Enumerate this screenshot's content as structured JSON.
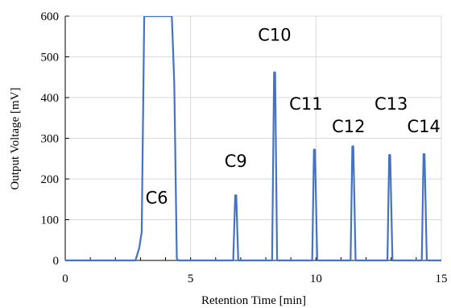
{
  "chart_data": {
    "type": "line",
    "title": "",
    "xlabel": "Retention Time [min]",
    "ylabel": "Output Voltage [mV]",
    "xlim": [
      0,
      15
    ],
    "ylim": [
      0,
      600
    ],
    "grid": true,
    "xticks": [
      0,
      5,
      10,
      15
    ],
    "xtick_labels": [
      "0",
      "5",
      "10",
      "15"
    ],
    "yticks": [
      0,
      100,
      200,
      300,
      400,
      500,
      600
    ],
    "ytick_labels": [
      "0",
      "100",
      "200",
      "300",
      "400",
      "500",
      "600"
    ],
    "series": [
      {
        "color": "#4472C4",
        "x": [
          0,
          2.8,
          2.95,
          3.05,
          3.15,
          3.2,
          4.25,
          4.3,
          4.35,
          4.45,
          4.5,
          6.7,
          6.78,
          6.82,
          6.9,
          8.25,
          8.33,
          8.37,
          8.45,
          9.85,
          9.92,
          9.96,
          10.05,
          11.38,
          11.45,
          11.49,
          11.58,
          12.85,
          12.92,
          12.96,
          13.05,
          14.22,
          14.29,
          14.33,
          14.42,
          15
        ],
        "y": [
          0,
          0,
          30,
          70,
          600,
          600,
          600,
          520,
          430,
          5,
          0,
          0,
          160,
          160,
          0,
          0,
          462,
          462,
          0,
          0,
          272,
          272,
          0,
          0,
          280,
          280,
          0,
          0,
          259,
          259,
          0,
          0,
          261,
          261,
          0,
          0
        ]
      }
    ],
    "annotations": [
      {
        "text": "C6",
        "x": 3.65,
        "y": 140
      },
      {
        "text": "C9",
        "x": 6.8,
        "y": 230
      },
      {
        "text": "C10",
        "x": 8.35,
        "y": 540
      },
      {
        "text": "C11",
        "x": 9.6,
        "y": 370
      },
      {
        "text": "C12",
        "x": 11.3,
        "y": 315
      },
      {
        "text": "C13",
        "x": 13.0,
        "y": 370
      },
      {
        "text": "C14",
        "x": 14.3,
        "y": 315
      }
    ]
  }
}
